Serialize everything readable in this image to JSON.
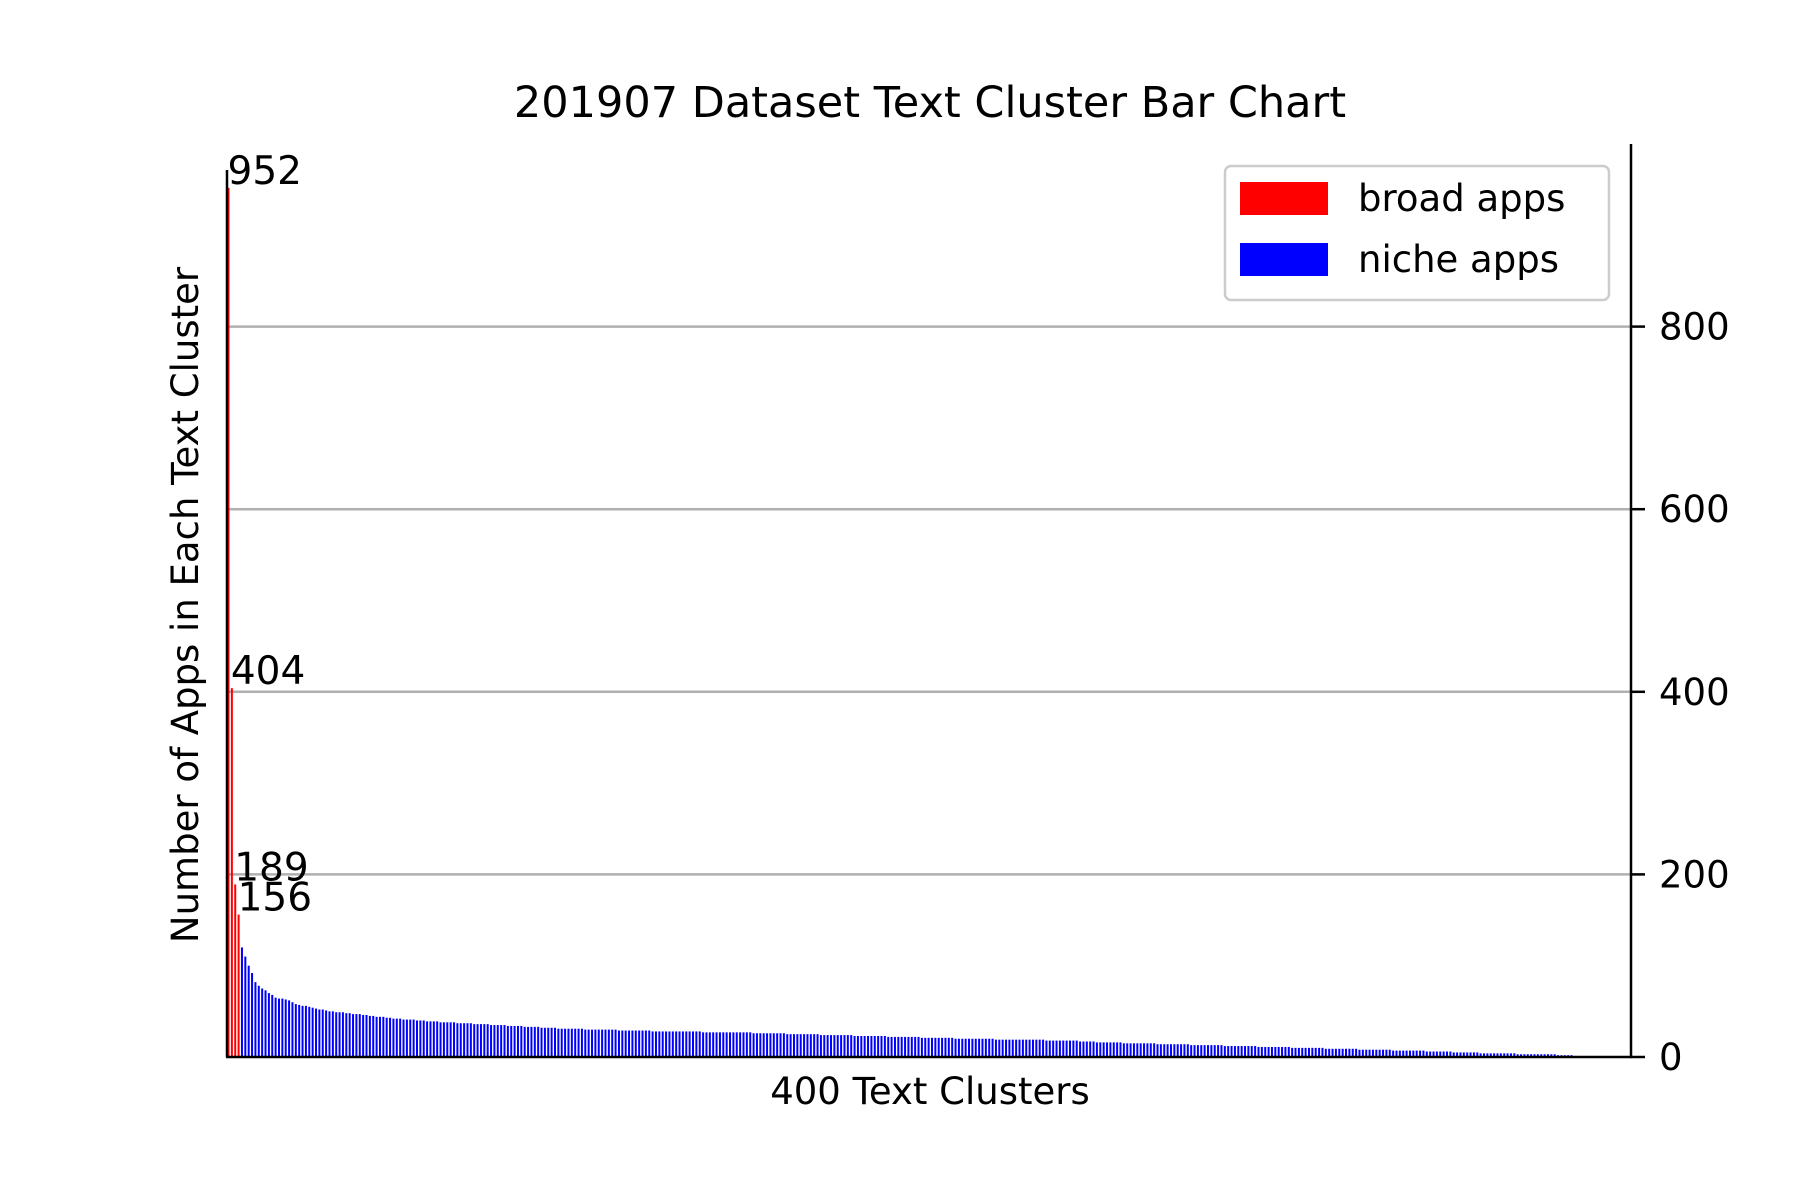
{
  "chart_data": {
    "type": "bar",
    "title": "201907 Dataset Text Cluster Bar Chart",
    "xlabel": "400 Text Clusters",
    "ylabel": "Number of Apps in Each Text Cluster",
    "ylim": [
      0,
      1000
    ],
    "y_axis_side": "right",
    "yticks": [
      0,
      200,
      400,
      600,
      800
    ],
    "grid": "horizontal",
    "legend_position": "top-right",
    "category_count": 400,
    "annotations": [
      {
        "index": 0,
        "text": "952"
      },
      {
        "index": 1,
        "text": "404"
      },
      {
        "index": 2,
        "text": "189"
      },
      {
        "index": 3,
        "text": "156"
      }
    ],
    "series": [
      {
        "name": "broad apps",
        "color": "#ff0000",
        "start_index": 0,
        "values": [
          952,
          404,
          189,
          156
        ]
      },
      {
        "name": "niche apps",
        "color": "#0000ff",
        "start_index": 4,
        "breakpoints": [
          [
            4,
            120
          ],
          [
            5,
            110
          ],
          [
            6,
            100
          ],
          [
            7,
            92
          ],
          [
            8,
            82
          ],
          [
            9,
            78
          ],
          [
            10,
            75
          ],
          [
            12,
            70
          ],
          [
            14,
            65
          ],
          [
            18,
            62
          ],
          [
            20,
            58
          ],
          [
            25,
            54
          ],
          [
            30,
            50
          ],
          [
            38,
            47
          ],
          [
            45,
            44
          ],
          [
            50,
            42
          ],
          [
            60,
            39
          ],
          [
            70,
            37
          ],
          [
            80,
            35
          ],
          [
            90,
            33
          ],
          [
            100,
            31
          ],
          [
            110,
            30
          ],
          [
            130,
            28
          ],
          [
            150,
            27
          ],
          [
            170,
            25
          ],
          [
            200,
            22
          ],
          [
            220,
            20
          ],
          [
            250,
            18
          ],
          [
            260,
            16
          ],
          [
            280,
            14
          ],
          [
            300,
            12
          ],
          [
            320,
            10
          ],
          [
            340,
            8
          ],
          [
            360,
            6
          ],
          [
            375,
            4
          ],
          [
            390,
            3
          ],
          [
            399,
            2
          ]
        ]
      }
    ]
  }
}
